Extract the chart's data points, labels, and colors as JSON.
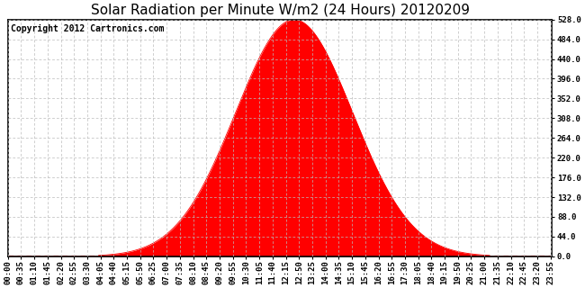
{
  "title": "Solar Radiation per Minute W/m2 (24 Hours) 20120209",
  "copyright_text": "Copyright 2012 Cartronics.com",
  "fill_color": "#FF0000",
  "line_color": "#FF0000",
  "background_color": "#FFFFFF",
  "grid_color": "#BBBBBB",
  "dashed_line_color": "#FF0000",
  "ytick_labels": [
    "0.0",
    "44.0",
    "88.0",
    "132.0",
    "176.0",
    "220.0",
    "264.0",
    "308.0",
    "352.0",
    "396.0",
    "440.0",
    "484.0",
    "528.0"
  ],
  "ytick_values": [
    0.0,
    44.0,
    88.0,
    132.0,
    176.0,
    220.0,
    264.0,
    308.0,
    352.0,
    396.0,
    440.0,
    484.0,
    528.0
  ],
  "ylim": [
    0.0,
    528.0
  ],
  "peak_value": 528.0,
  "peak_minute": 757,
  "sigma_minutes": 155,
  "total_minutes": 1440,
  "xtick_step_minutes": 35,
  "title_fontsize": 11,
  "copyright_fontsize": 7,
  "tick_fontsize": 6.5
}
